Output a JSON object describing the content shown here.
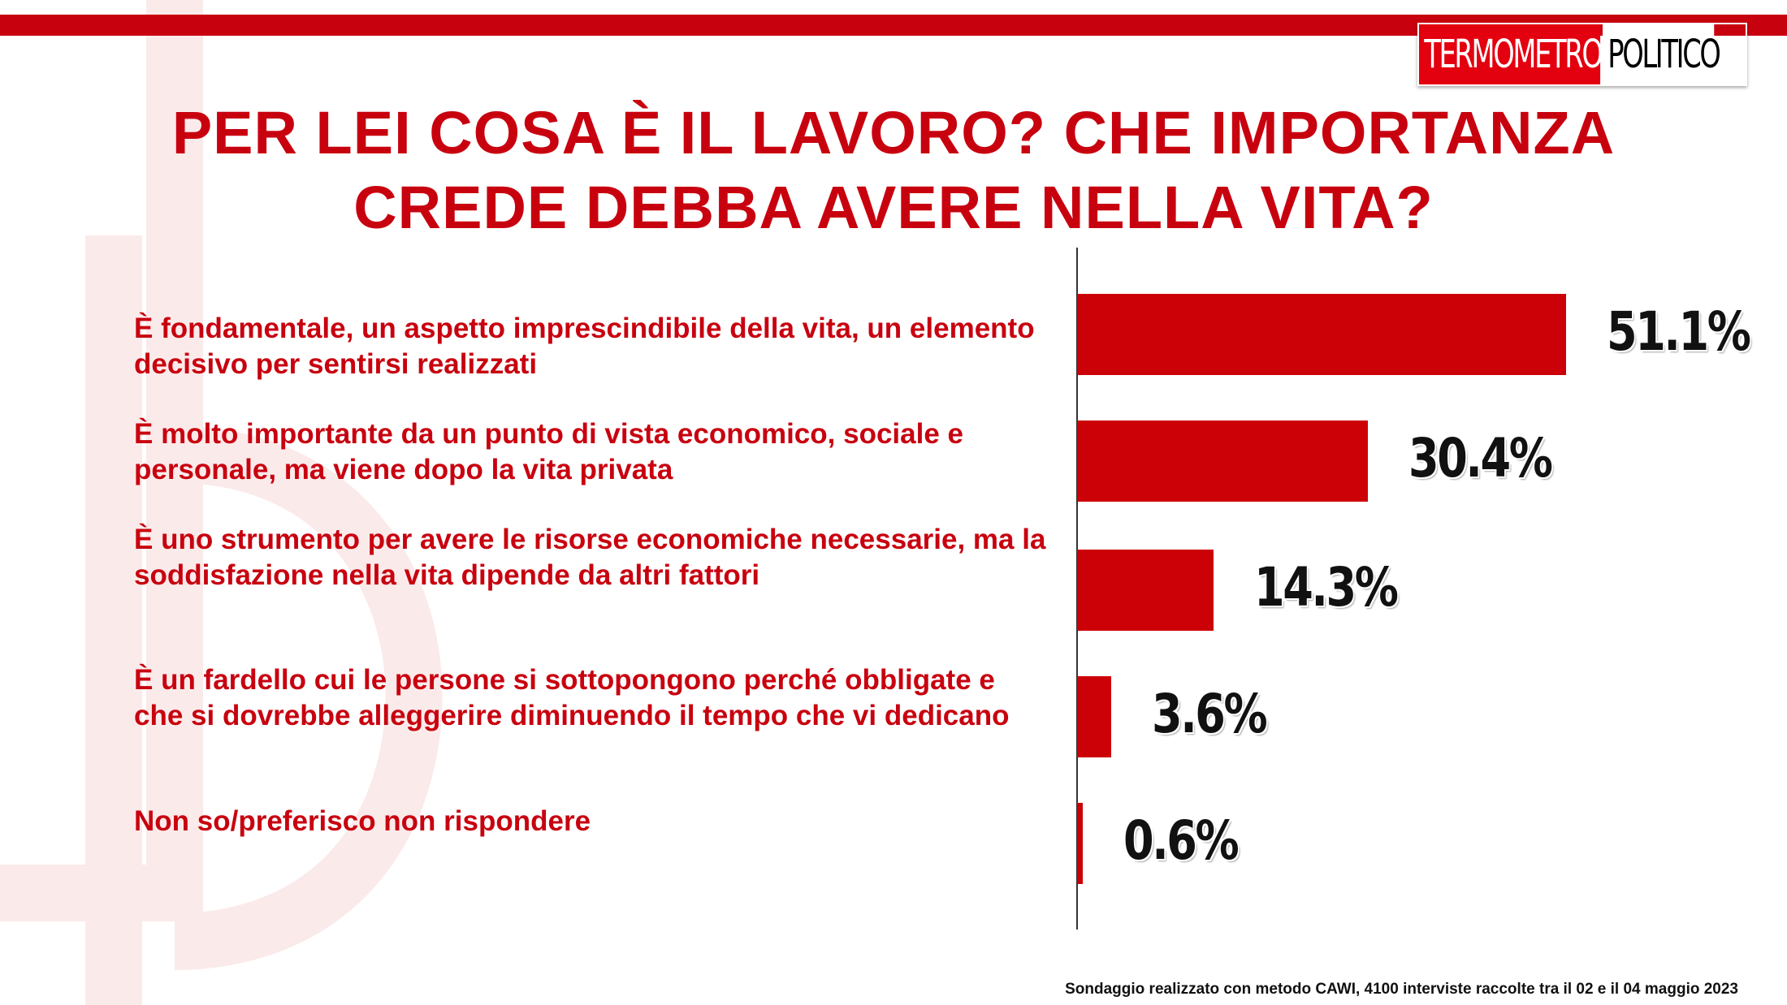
{
  "logo": {
    "part1": "TERMOMETRO",
    "part2": "POLITICO"
  },
  "chart_data": {
    "type": "bar",
    "orientation": "horizontal",
    "title_lines": [
      "PER LEI COSA È IL LAVORO? CHE IMPORTANZA",
      "CREDE DEBBA AVERE NELLA VITA?"
    ],
    "categories": [
      "È fondamentale, un aspetto imprescindibile della vita, un elemento decisivo per sentirsi realizzati",
      "È molto importante da un punto di vista economico, sociale e personale, ma viene dopo la vita privata",
      "È uno strumento per avere le risorse economiche necessarie, ma la soddisfazione nella vita dipende da altri fattori",
      "È un fardello cui le persone si sottopongono perché obbligate e che si dovrebbe alleggerire diminuendo il tempo che vi dedicano",
      "Non so/preferisco non rispondere"
    ],
    "values": [
      51.1,
      30.4,
      14.3,
      3.6,
      0.6
    ],
    "value_labels": [
      "51.1%",
      "30.4%",
      "14.3%",
      "3.6%",
      "0.6%"
    ],
    "unit": "%",
    "bar_color": "#cc0007",
    "label_color": "#c8010f",
    "xlim": [
      0,
      51.1
    ],
    "grid": false
  },
  "source": "Sondaggio realizzato con metodo CAWI, 4100 interviste raccolte tra il 02 e il 04 maggio 2023",
  "colors": {
    "brand_red": "#c8010f"
  }
}
